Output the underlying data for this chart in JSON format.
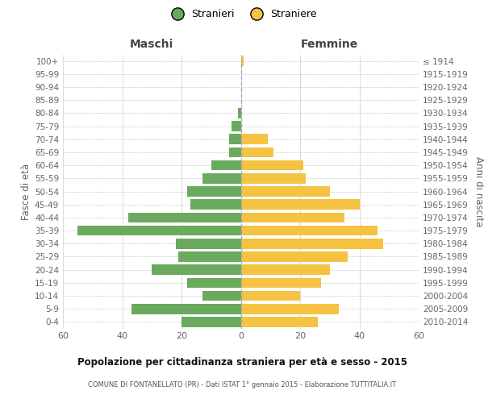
{
  "age_groups": [
    "0-4",
    "5-9",
    "10-14",
    "15-19",
    "20-24",
    "25-29",
    "30-34",
    "35-39",
    "40-44",
    "45-49",
    "50-54",
    "55-59",
    "60-64",
    "65-69",
    "70-74",
    "75-79",
    "80-84",
    "85-89",
    "90-94",
    "95-99",
    "100+"
  ],
  "birth_years": [
    "2010-2014",
    "2005-2009",
    "2000-2004",
    "1995-1999",
    "1990-1994",
    "1985-1989",
    "1980-1984",
    "1975-1979",
    "1970-1974",
    "1965-1969",
    "1960-1964",
    "1955-1959",
    "1950-1954",
    "1945-1949",
    "1940-1944",
    "1935-1939",
    "1930-1934",
    "1925-1929",
    "1920-1924",
    "1915-1919",
    "≤ 1914"
  ],
  "maschi": [
    20,
    37,
    13,
    18,
    30,
    21,
    22,
    55,
    38,
    17,
    18,
    13,
    10,
    4,
    4,
    3,
    1,
    0,
    0,
    0,
    0
  ],
  "femmine": [
    26,
    33,
    20,
    27,
    30,
    36,
    48,
    46,
    35,
    40,
    30,
    22,
    21,
    11,
    9,
    0,
    0,
    0,
    0,
    0,
    1
  ],
  "maschi_color": "#6aaa5e",
  "femmine_color": "#f5c242",
  "bg_color": "#ffffff",
  "grid_color": "#cccccc",
  "dashed_line_color": "#aaaaaa",
  "title": "Popolazione per cittadinanza straniera per età e sesso - 2015",
  "subtitle": "COMUNE DI FONTANELLATO (PR) - Dati ISTAT 1° gennaio 2015 - Elaborazione TUTTITALIA.IT",
  "legend_stranieri": "Stranieri",
  "legend_straniere": "Straniere",
  "label_maschi": "Maschi",
  "label_femmine": "Femmine",
  "ylabel_left": "Fasce di età",
  "ylabel_right": "Anni di nascita",
  "xlim": 60
}
